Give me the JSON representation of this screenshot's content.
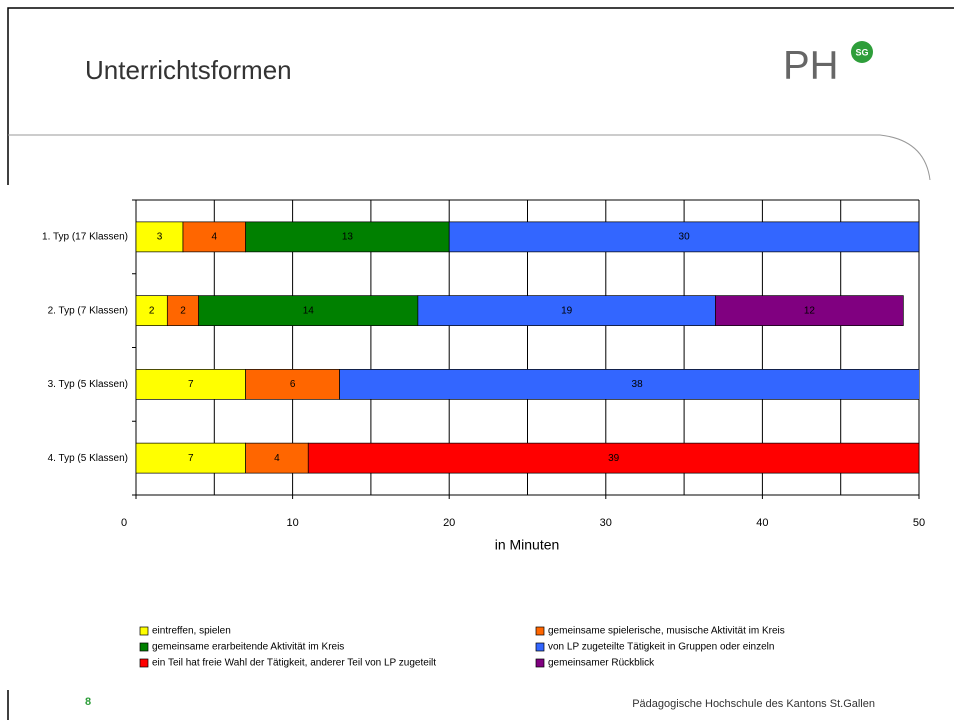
{
  "header": {
    "title": "Unterrichtsformen",
    "logo": "PH",
    "badge": "SG"
  },
  "chart_data": {
    "type": "stacked-barh",
    "categories": [
      "1. Typ (17 Klassen)",
      "2. Typ (7 Klassen)",
      "3. Typ (5 Klassen)",
      "4. Typ (5 Klassen)"
    ],
    "series": [
      {
        "name": "eintreffen, spielen",
        "color": "#ffff00",
        "values": [
          3,
          2,
          7,
          7
        ]
      },
      {
        "name": "gemeinsame spielerische, musische Aktivität im Kreis",
        "color": "#ff6600",
        "values": [
          4,
          2,
          6,
          4
        ]
      },
      {
        "name": "gemeinsame erarbeitende Aktivität im Kreis",
        "color": "#008000",
        "values": [
          13,
          14,
          null,
          null
        ]
      },
      {
        "name": "von LP zugeteilte Tätigkeit in Gruppen oder einzeln",
        "color": "#3366ff",
        "values": [
          30,
          19,
          38,
          null
        ]
      },
      {
        "name": "ein Teil hat freie Wahl der Tätigkeit, anderer Teil von LP zugeteilt",
        "color": "#ff0000",
        "values": [
          null,
          null,
          null,
          39
        ]
      },
      {
        "name": "gemeinsamer Rückblick",
        "color": "#800080",
        "values": [
          null,
          12,
          null,
          null
        ]
      }
    ],
    "xlabel": "in Minuten",
    "xlim": [
      0,
      50
    ],
    "xticks": [
      0,
      10,
      20,
      30,
      40,
      50
    ],
    "xgrid": [
      0,
      5,
      10,
      15,
      20,
      25,
      30,
      35,
      40,
      45,
      50
    ],
    "legend": "bottom"
  },
  "footer": {
    "page": "8",
    "institution": "Pädagogische Hochschule des Kantons St.Gallen"
  }
}
